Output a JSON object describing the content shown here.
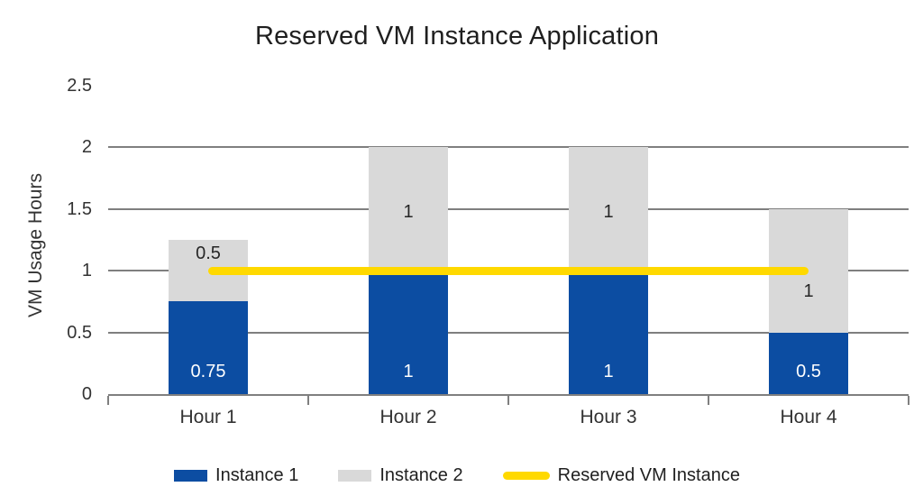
{
  "chart_data": {
    "type": "bar",
    "stacked": true,
    "title": "Reserved VM Instance Application",
    "xlabel": "",
    "ylabel": "VM Usage Hours",
    "categories": [
      "Hour 1",
      "Hour 2",
      "Hour 3",
      "Hour 4"
    ],
    "series": [
      {
        "name": "Instance 1",
        "values": [
          0.75,
          1,
          1,
          0.5
        ],
        "color_key": "instance1",
        "label_color_key": "label_light",
        "label_placement": "inside-base"
      },
      {
        "name": "Instance 2",
        "values": [
          0.5,
          1,
          1,
          1
        ],
        "color_key": "instance2",
        "label_color_key": "label_dark",
        "label_placement": "center",
        "label_dy": [
          -19,
          3,
          3,
          23
        ]
      }
    ],
    "reference_line": {
      "name": "Reserved VM Instance",
      "value": 1,
      "color_key": "reserved_line",
      "span": "first-to-last-bar-center"
    },
    "y_ticks": [
      0,
      0.5,
      1,
      1.5,
      2,
      2.5
    ],
    "ylim": [
      0,
      2.5
    ],
    "grid": "horizontal",
    "legend_position": "bottom",
    "colors": {
      "instance1": "#0C4DA2",
      "instance2": "#D9D9D9",
      "reserved_line": "#FFD900",
      "grid": "#7F7F7F",
      "text": "#333333",
      "title": "#1F1F1F",
      "label_light": "#FFFFFF",
      "label_dark": "#262626"
    }
  }
}
